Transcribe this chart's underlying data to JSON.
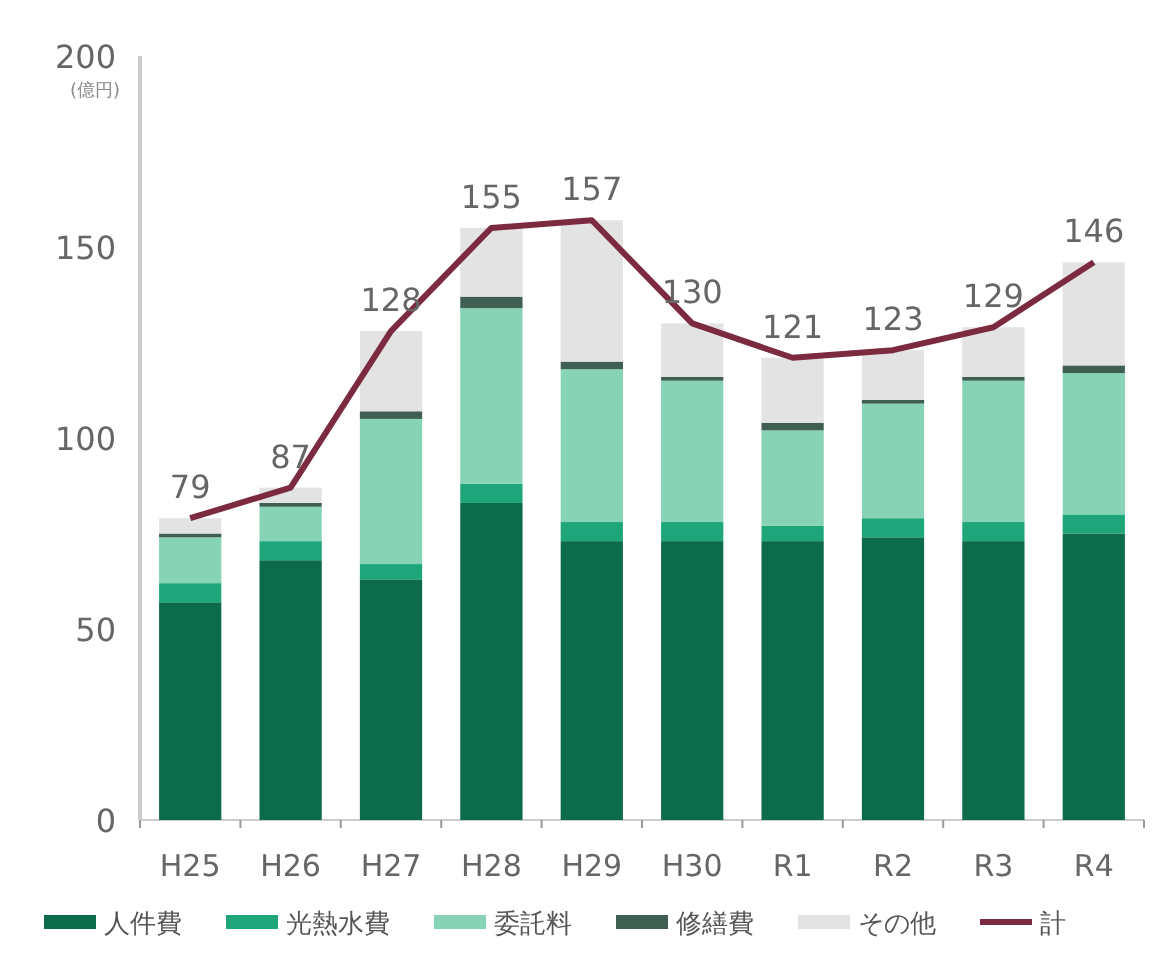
{
  "chart_data": {
    "type": "bar",
    "stacked": true,
    "ylabel": "(億円)",
    "categories": [
      "H25",
      "H26",
      "H27",
      "H28",
      "H29",
      "H30",
      "R1",
      "R2",
      "R3",
      "R4"
    ],
    "series": [
      {
        "name": "人件費",
        "color": "#0b6b4a",
        "values": [
          57,
          68,
          63,
          83,
          73,
          73,
          73,
          74,
          73,
          75
        ]
      },
      {
        "name": "光熱水費",
        "color": "#1fa57a",
        "values": [
          5,
          5,
          4,
          5,
          5,
          5,
          4,
          5,
          5,
          5
        ]
      },
      {
        "name": "委託料",
        "color": "#86d3b5",
        "values": [
          12,
          9,
          38,
          46,
          40,
          37,
          25,
          30,
          37,
          37
        ]
      },
      {
        "name": "修繕費",
        "color": "#3f5f52",
        "values": [
          1,
          1,
          2,
          3,
          2,
          1,
          2,
          1,
          1,
          2
        ]
      },
      {
        "name": "その他",
        "color": "#e3e3e3",
        "values": [
          4,
          4,
          21,
          18,
          37,
          14,
          17,
          13,
          13,
          27
        ]
      },
      {
        "name": "計",
        "type": "line",
        "color": "#7b2a3f",
        "values": [
          79,
          87,
          128,
          155,
          157,
          130,
          121,
          123,
          129,
          146
        ],
        "value_labels": [
          "79",
          "87",
          "128",
          "155",
          "157",
          "130",
          "121",
          "123",
          "129",
          "146"
        ]
      }
    ],
    "ylim": [
      0,
      200
    ],
    "yticks": [
      0,
      50,
      100,
      150,
      200
    ],
    "legend": "bottom",
    "grid": false
  }
}
